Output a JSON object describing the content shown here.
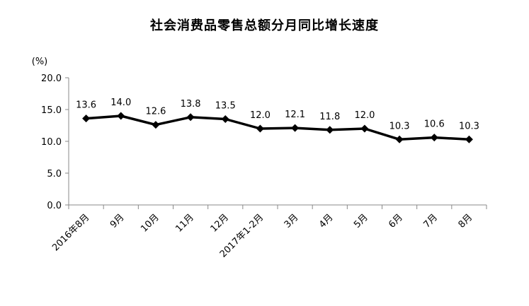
{
  "chart_data": {
    "type": "line",
    "title": "社会消费品零售总额分月同比增长速度",
    "y_unit": "(%)",
    "categories": [
      "2016年8月",
      "9月",
      "10月",
      "11月",
      "12月",
      "2017年1-2月",
      "3月",
      "4月",
      "5月",
      "6月",
      "7月",
      "8月"
    ],
    "series": [
      {
        "values": [
          13.6,
          14.0,
          12.6,
          13.8,
          13.5,
          12.0,
          12.1,
          11.8,
          12.0,
          10.3,
          10.6,
          10.3
        ]
      }
    ],
    "data_labels": [
      "13.6",
      "14.0",
      "12.6",
      "13.8",
      "13.5",
      "12.0",
      "12.1",
      "11.8",
      "12.0",
      "10.3",
      "10.6",
      "10.3"
    ],
    "ylim": [
      0,
      20
    ],
    "yticks": [
      "0.0",
      "5.0",
      "10.0",
      "15.0",
      "20.0"
    ],
    "xlabel": "",
    "ylabel": "",
    "grid": false,
    "legend": "none",
    "line_color": "#000000"
  }
}
